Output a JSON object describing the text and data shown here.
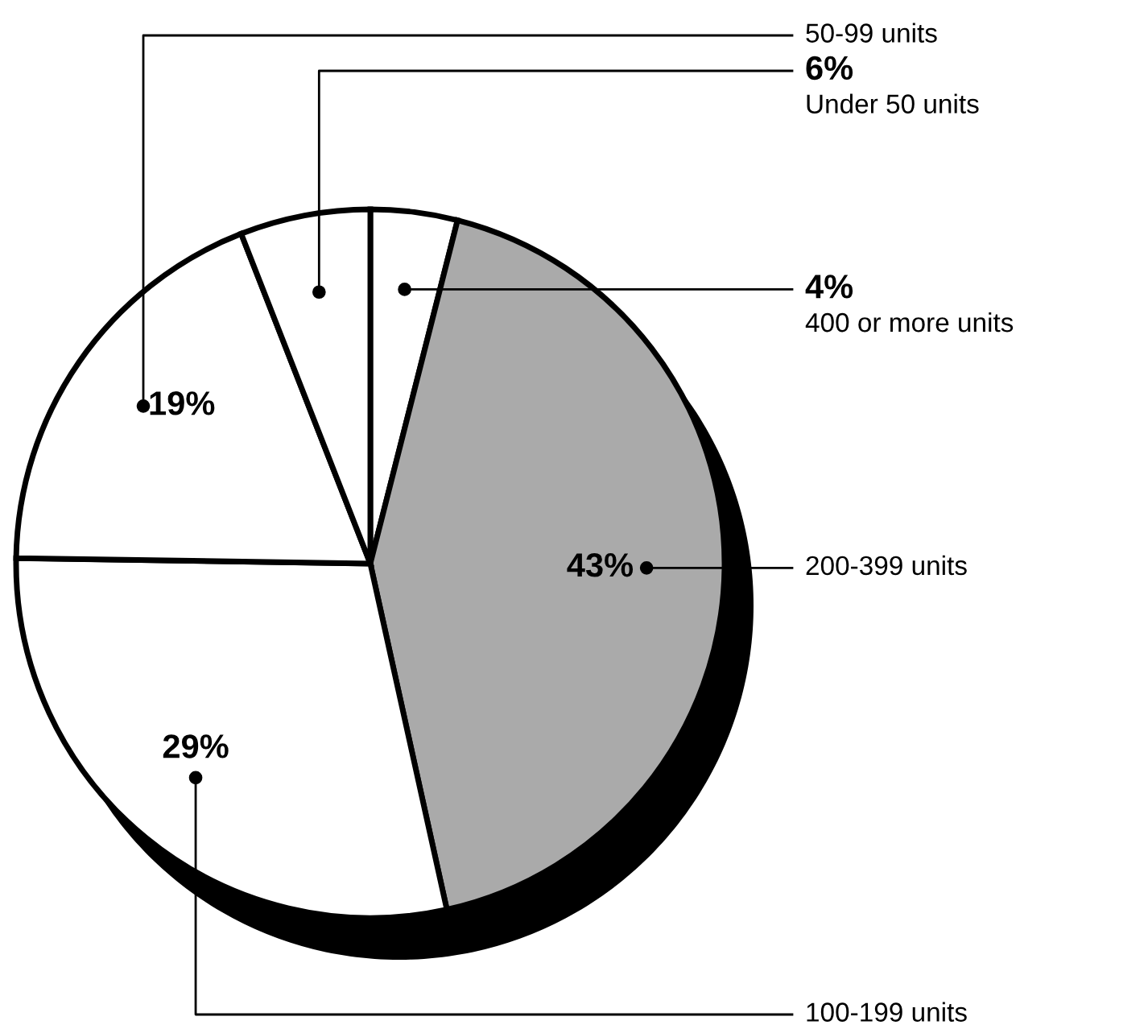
{
  "chart_data": {
    "type": "pie",
    "categories": [
      "400 or more units",
      "200-399 units",
      "100-199 units",
      "50-99 units",
      "Under 50 units"
    ],
    "values": [
      4,
      43,
      29,
      19,
      6
    ],
    "value_labels": [
      "4%",
      "43%",
      "29%",
      "19%",
      "6%"
    ],
    "colors": [
      "#ffffff",
      "#aaaaaa",
      "#ffffff",
      "#ffffff",
      "#ffffff"
    ],
    "legend": false
  }
}
